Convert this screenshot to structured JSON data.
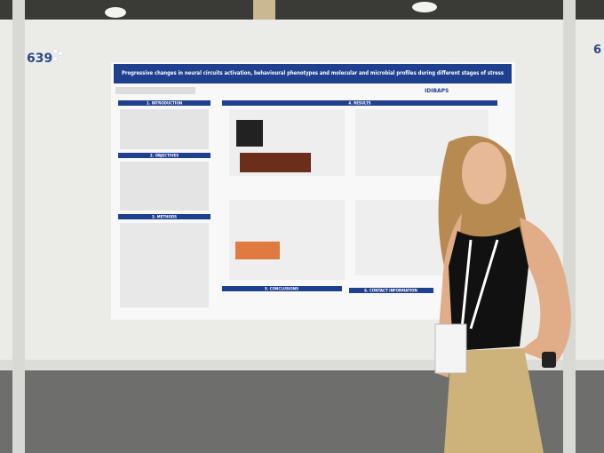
{
  "board": {
    "number": "639",
    "next_number": "6"
  },
  "poster": {
    "title": "Progressive changes in neural circuits activation, behavioural phenotypes and molecular and microbial profiles during different stages of stress",
    "logo": "IDIBAPS",
    "sections": [
      "1. INTRODUCTION",
      "2. OBJECTIVES",
      "3. METHODS",
      "4. RESULTS",
      "5. CONCLUSIONS",
      "6. CONTACT INFORMATION"
    ]
  }
}
